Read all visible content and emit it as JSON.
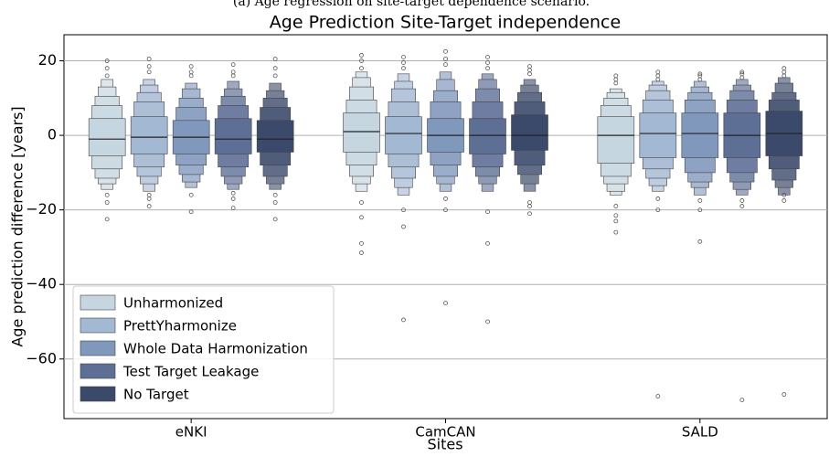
{
  "chart_data": {
    "type": "boxen",
    "caption": "(a) Age regression on site-target dependence scenario.",
    "title": "Age Prediction Site-Target independence",
    "xlabel": "Sites",
    "ylabel": "Age prediction difference [years]",
    "categories": [
      "eNKI",
      "CamCAN",
      "SALD"
    ],
    "ylim": [
      -76,
      27
    ],
    "yticks": [
      {
        "value": -60,
        "label": "−60"
      },
      {
        "value": -40,
        "label": "−40"
      },
      {
        "value": -20,
        "label": "−20"
      },
      0,
      20
    ],
    "grid": true,
    "legend": "lower left",
    "series": [
      {
        "name": "Unharmonized",
        "color": "#c6d6e0",
        "groups": [
          {
            "median": -1,
            "boxes": [
              [
                -5.5,
                4.5
              ],
              [
                -9,
                8
              ],
              [
                -11.5,
                10.5
              ],
              [
                -13,
                13
              ],
              [
                -14.5,
                15
              ]
            ],
            "outliers": [
              16,
              18,
              20,
              -16,
              -18,
              -22.5
            ]
          },
          {
            "median": 1,
            "boxes": [
              [
                -4.5,
                6
              ],
              [
                -8,
                9.5
              ],
              [
                -11,
                13
              ],
              [
                -13,
                15.5
              ],
              [
                -15,
                17
              ]
            ],
            "outliers": [
              18,
              20,
              21.5,
              -18,
              -22,
              -29,
              -31.5
            ]
          },
          {
            "median": 0,
            "boxes": [
              [
                -7.5,
                5
              ],
              [
                -11,
                8
              ],
              [
                -13,
                10
              ],
              [
                -15,
                11.5
              ],
              [
                -16,
                12.5
              ]
            ],
            "outliers": [
              14,
              15,
              16,
              -19,
              -21.5,
              -23,
              -26
            ]
          }
        ]
      },
      {
        "name": "PrettYharmonize",
        "color": "#a3b8d3",
        "groups": [
          {
            "median": -0.5,
            "boxes": [
              [
                -5,
                5
              ],
              [
                -8.5,
                9
              ],
              [
                -11,
                11.5
              ],
              [
                -13,
                13.5
              ],
              [
                -15,
                15
              ]
            ],
            "outliers": [
              17,
              18.5,
              20.5,
              -16,
              -17,
              -19
            ]
          },
          {
            "median": 0.5,
            "boxes": [
              [
                -5,
                5
              ],
              [
                -8.5,
                9
              ],
              [
                -11.5,
                12.5
              ],
              [
                -14,
                14.5
              ],
              [
                -16,
                16.5
              ]
            ],
            "outliers": [
              18,
              19.5,
              21,
              -20,
              -24.5,
              -49.5
            ]
          },
          {
            "median": 0.5,
            "boxes": [
              [
                -6,
                6
              ],
              [
                -9,
                9.5
              ],
              [
                -11.5,
                12
              ],
              [
                -13.5,
                13.5
              ],
              [
                -15,
                14.5
              ]
            ],
            "outliers": [
              15,
              16,
              17,
              -17,
              -20,
              -70
            ]
          }
        ]
      },
      {
        "name": "Whole Data Harmonization",
        "color": "#8198bd",
        "groups": [
          {
            "median": -0.5,
            "boxes": [
              [
                -5,
                4
              ],
              [
                -8,
                7.5
              ],
              [
                -10.5,
                10
              ],
              [
                -12.5,
                12.5
              ],
              [
                -14,
                14
              ]
            ],
            "outliers": [
              16,
              17,
              18.5,
              -16,
              -20.5
            ]
          },
          {
            "median": 0,
            "boxes": [
              [
                -4.5,
                4.5
              ],
              [
                -8,
                9
              ],
              [
                -11,
                12
              ],
              [
                -13,
                15
              ],
              [
                -15,
                17
              ]
            ],
            "outliers": [
              19,
              20.5,
              22.5,
              -17,
              -20,
              -45
            ]
          },
          {
            "median": 0.5,
            "boxes": [
              [
                -6,
                6
              ],
              [
                -10,
                9.5
              ],
              [
                -12.5,
                11.5
              ],
              [
                -14,
                13
              ],
              [
                -16,
                14.5
              ]
            ],
            "outliers": [
              15,
              16,
              16.5,
              -17.5,
              -20,
              -28.5
            ]
          }
        ]
      },
      {
        "name": "Test Target Leakage",
        "color": "#5e6f96",
        "groups": [
          {
            "median": -1,
            "boxes": [
              [
                -5,
                4.5
              ],
              [
                -8.5,
                8
              ],
              [
                -11,
                10.5
              ],
              [
                -13,
                12.5
              ],
              [
                -14.5,
                14.5
              ]
            ],
            "outliers": [
              16,
              17,
              19,
              -15.5,
              -17,
              -19.5
            ]
          },
          {
            "median": 0,
            "boxes": [
              [
                -5,
                4.5
              ],
              [
                -8.5,
                9
              ],
              [
                -11,
                12.5
              ],
              [
                -13,
                15
              ],
              [
                -15,
                16.5
              ]
            ],
            "outliers": [
              18,
              19.5,
              21,
              -20.5,
              -29,
              -50
            ]
          },
          {
            "median": 0,
            "boxes": [
              [
                -6,
                6
              ],
              [
                -10,
                9.5
              ],
              [
                -12.5,
                12
              ],
              [
                -14.5,
                13.5
              ],
              [
                -16,
                15
              ]
            ],
            "outliers": [
              15.5,
              16.5,
              17,
              -17.5,
              -19,
              -71
            ]
          }
        ]
      },
      {
        "name": "No Target",
        "color": "#3b4a6b",
        "groups": [
          {
            "median": -1,
            "boxes": [
              [
                -4.5,
                4
              ],
              [
                -8,
                7.5
              ],
              [
                -11,
                10
              ],
              [
                -13,
                12
              ],
              [
                -14.5,
                14
              ]
            ],
            "outliers": [
              16,
              18,
              20.5,
              -16,
              -18,
              -22.5
            ]
          },
          {
            "median": 0,
            "boxes": [
              [
                -4,
                5.5
              ],
              [
                -8,
                9
              ],
              [
                -10.5,
                11.5
              ],
              [
                -13,
                13.5
              ],
              [
                -15,
                15
              ]
            ],
            "outliers": [
              16.5,
              17.5,
              18.5,
              -18,
              -19,
              -21
            ]
          },
          {
            "median": 0.5,
            "boxes": [
              [
                -5.5,
                6.5
              ],
              [
                -9,
                9.5
              ],
              [
                -12,
                11.5
              ],
              [
                -14,
                14
              ],
              [
                -16,
                15.5
              ]
            ],
            "outliers": [
              16,
              17,
              18,
              -16,
              -17.5,
              -69.5
            ]
          }
        ]
      }
    ]
  }
}
